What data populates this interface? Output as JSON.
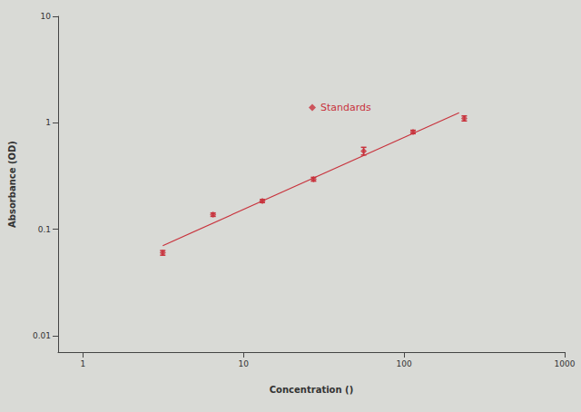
{
  "chart_data": {
    "type": "scatter",
    "x_label": "Concentration ()",
    "y_label": "Absorbance (OD)",
    "log": true,
    "grid": false,
    "legend": "top",
    "xlim": [
      0.7,
      1000
    ],
    "ylim": [
      0.007,
      10
    ],
    "xticks": [
      1,
      10,
      100,
      1000
    ],
    "yticks": [
      0.01,
      0.1,
      1,
      10
    ],
    "series": [
      {
        "name": "Standards",
        "color": "#c8323c",
        "marker": "diamond",
        "x": [
          3.14,
          6.46,
          13.1,
          27.3,
          56,
          113.7,
          237
        ],
        "values": [
          0.06,
          0.137,
          0.184,
          0.295,
          0.543,
          0.82,
          1.1
        ],
        "errors": [
          0.003,
          0.005,
          0.006,
          0.012,
          0.045,
          0.03,
          0.06
        ]
      },
      {
        "type": "line",
        "color": "#c8323c",
        "line_style": "solid",
        "x": [
          3.14,
          220
        ],
        "values": [
          0.07,
          1.24
        ]
      }
    ]
  }
}
